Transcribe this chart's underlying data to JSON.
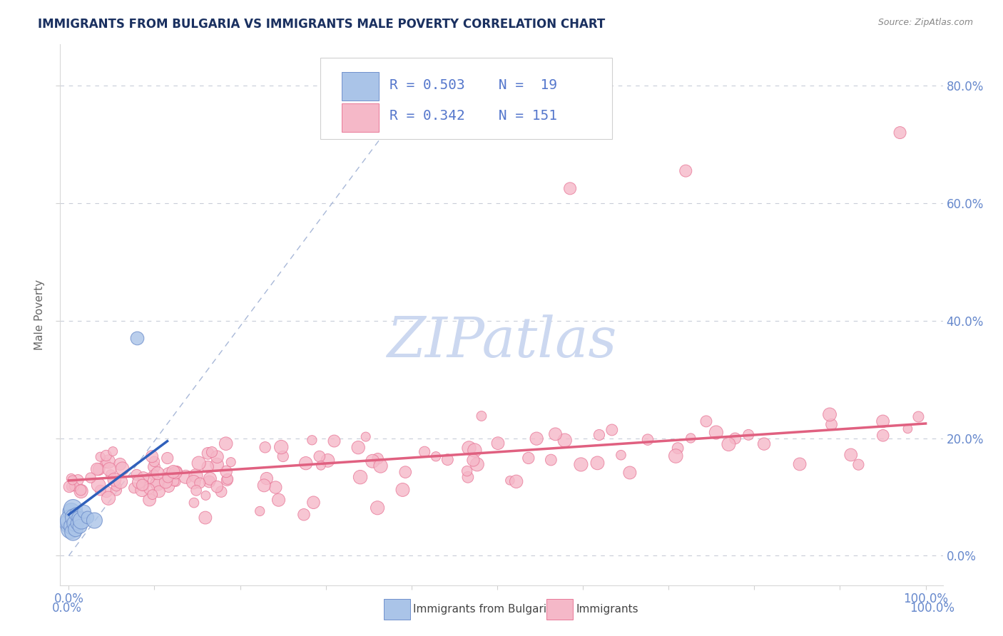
{
  "title": "IMMIGRANTS FROM BULGARIA VS IMMIGRANTS MALE POVERTY CORRELATION CHART",
  "source": "Source: ZipAtlas.com",
  "ylabel": "Male Poverty",
  "watermark": "ZIPatlas",
  "legend_blue_label": "Immigrants from Bulgaria",
  "legend_pink_label": "Immigrants",
  "r_blue": 0.503,
  "n_blue": 19,
  "r_pink": 0.342,
  "n_pink": 151,
  "blue_color": "#aac4e8",
  "blue_edge_color": "#7090cc",
  "blue_line_color": "#3060bb",
  "pink_color": "#f5b8c8",
  "pink_edge_color": "#e87898",
  "pink_line_color": "#e06080",
  "legend_text_color": "#5577cc",
  "axis_tick_color": "#6688cc",
  "title_color": "#1a3060",
  "source_color": "#888888",
  "background_color": "#ffffff",
  "grid_color": "#c8ccd8",
  "ref_line_color": "#a8b8d8",
  "ylabel_color": "#666666",
  "watermark_color": "#ccd8f0",
  "legend_border_color": "#cccccc",
  "xlim": [
    -0.01,
    1.02
  ],
  "ylim": [
    -0.05,
    0.87
  ],
  "yticks": [
    0.0,
    0.2,
    0.4,
    0.6,
    0.8
  ],
  "xticks": [
    0.0,
    0.1,
    0.2,
    0.3,
    0.4,
    0.5,
    0.6,
    0.7,
    0.8,
    0.9,
    1.0
  ]
}
